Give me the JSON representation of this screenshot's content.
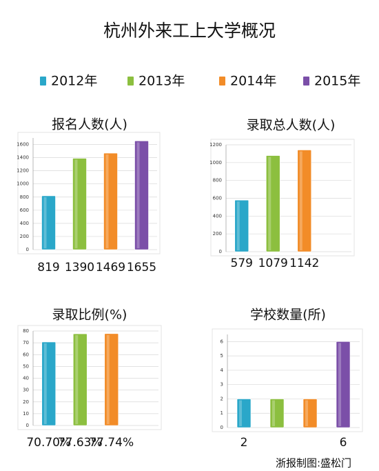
{
  "title": "杭州外来工上大学概况",
  "legend": {
    "items": [
      {
        "name": "2012年",
        "color": "#2aa7c9"
      },
      {
        "name": "2013年",
        "color": "#8cbf3f"
      },
      {
        "name": "2014年",
        "color": "#f28c28"
      },
      {
        "name": "2015年",
        "color": "#7b4fa8"
      }
    ]
  },
  "chart_data": [
    {
      "type": "bar",
      "title": "报名人数(人)",
      "values": [
        819,
        1390,
        1469,
        1655
      ],
      "colors": [
        "#2aa7c9",
        "#8cbf3f",
        "#f28c28",
        "#7b4fa8"
      ],
      "ylim": [
        0,
        1700
      ],
      "yticks": [
        0,
        200,
        400,
        600,
        800,
        1000,
        1200,
        1400,
        1600
      ],
      "grid": true
    },
    {
      "type": "bar",
      "title": "录取总人数(人)",
      "values": [
        579,
        1079,
        1142,
        null
      ],
      "colors": [
        "#2aa7c9",
        "#8cbf3f",
        "#f28c28",
        "#7b4fa8"
      ],
      "ylim": [
        0,
        1200
      ],
      "yticks": [
        0,
        200,
        400,
        600,
        800,
        1000,
        1200
      ],
      "grid": true
    },
    {
      "type": "bar",
      "title": "录取比例(%)",
      "values": [
        70.7,
        77.63,
        77.74,
        null
      ],
      "value_labels": [
        "70.70%",
        "77.63%",
        "77.74%",
        null
      ],
      "colors": [
        "#2aa7c9",
        "#8cbf3f",
        "#f28c28",
        "#7b4fa8"
      ],
      "ylim": [
        0,
        80
      ],
      "yticks": [
        0,
        10,
        20,
        30,
        40,
        50,
        60,
        70,
        80
      ],
      "grid": true
    },
    {
      "type": "bar",
      "title": "学校数量(所)",
      "values": [
        2,
        2,
        2,
        6
      ],
      "value_labels": [
        "2",
        null,
        null,
        "6"
      ],
      "colors": [
        "#2aa7c9",
        "#8cbf3f",
        "#f28c28",
        "#7b4fa8"
      ],
      "ylim": [
        0,
        6.5
      ],
      "yticks": [
        0,
        1,
        2,
        3,
        4,
        5,
        6
      ],
      "grid": true
    }
  ],
  "source": "浙报制图:盛松门"
}
